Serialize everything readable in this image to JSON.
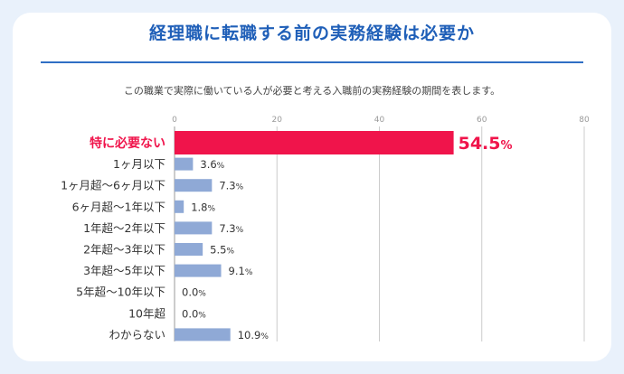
{
  "title": "経理職に転職する前の実務経験は必要か",
  "subtitle": "この職業で実際に働いている人が必要と考える入職前の実務経験の期間を表します。",
  "colors": {
    "background": "#e9f1fb",
    "title": "#1f5fb8",
    "highlight": "#f0144b",
    "bar": "#8fa9d6",
    "grid": "#cccccc",
    "text": "#333333"
  },
  "chart_data": {
    "type": "bar",
    "orientation": "horizontal",
    "categories": [
      "特に必要ない",
      "1ヶ月以下",
      "1ヶ月超〜6ヶ月以下",
      "6ヶ月超〜1年以下",
      "1年超〜2年以下",
      "2年超〜3年以下",
      "3年超〜5年以下",
      "5年超〜10年以下",
      "10年超",
      "わからない"
    ],
    "values": [
      54.5,
      3.6,
      7.3,
      1.8,
      7.3,
      5.5,
      9.1,
      0.0,
      0.0,
      10.9
    ],
    "value_labels": [
      "54.5%",
      "3.6%",
      "7.3%",
      "1.8%",
      "7.3%",
      "5.5%",
      "9.1%",
      "0.0%",
      "0.0%",
      "10.9%"
    ],
    "highlight_index": 0,
    "xlim": [
      0,
      80
    ],
    "xticks": [
      0,
      20,
      40,
      60,
      80
    ],
    "grid": true,
    "unit": "%"
  }
}
